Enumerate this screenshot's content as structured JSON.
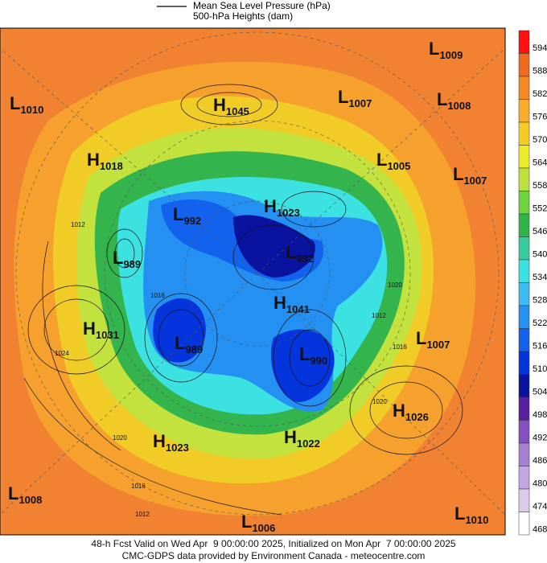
{
  "legend": {
    "items": [
      "Mean Sea Level Pressure (hPa)",
      "500-hPa Heights (dam)"
    ]
  },
  "colorbar": {
    "labels": [
      594,
      588,
      582,
      576,
      570,
      564,
      558,
      552,
      546,
      540,
      534,
      528,
      522,
      516,
      510,
      504,
      498,
      492,
      486,
      480,
      474,
      468
    ],
    "colors": [
      "#ff1010",
      "#f06a1e",
      "#f58a22",
      "#f8ac2c",
      "#f4cc24",
      "#ecec2a",
      "#bde23c",
      "#6fd23e",
      "#2fb44a",
      "#36cc9c",
      "#3ce2e2",
      "#3cbcf2",
      "#2490f2",
      "#1262ee",
      "#0434dc",
      "#0a12a0",
      "#5a1ea0",
      "#8450c2",
      "#a880d2",
      "#c4a6e2",
      "#dccbea",
      "#ffffff"
    ]
  },
  "centers": [
    {
      "type": "L",
      "value": 1010
    },
    {
      "type": "H",
      "value": 1045
    },
    {
      "type": "L",
      "value": 1007
    },
    {
      "type": "L",
      "value": 1009
    },
    {
      "type": "L",
      "value": 1008
    },
    {
      "type": "H",
      "value": 1018
    },
    {
      "type": "L",
      "value": 1005
    },
    {
      "type": "L",
      "value": 1007
    },
    {
      "type": "L",
      "value": 992
    },
    {
      "type": "H",
      "value": 1023
    },
    {
      "type": "L",
      "value": 989
    },
    {
      "type": "L",
      "value": 992
    },
    {
      "type": "H",
      "value": 1041
    },
    {
      "type": "H",
      "value": 1031
    },
    {
      "type": "L",
      "value": 989
    },
    {
      "type": "L",
      "value": 990
    },
    {
      "type": "L",
      "value": 1007
    },
    {
      "type": "H",
      "value": 1026
    },
    {
      "type": "H",
      "value": 1023
    },
    {
      "type": "H",
      "value": 1022
    },
    {
      "type": "L",
      "value": 1008
    },
    {
      "type": "L",
      "value": 1006
    },
    {
      "type": "L",
      "value": 1010
    }
  ],
  "contour_labels": [
    1012,
    1016,
    1024,
    1020,
    1016,
    1012,
    1012,
    1016,
    1020,
    1020
  ],
  "footer": {
    "lines": [
      "48-h Fcst Valid on Wed Apr  9 00:00:00 2025, Initialized on Mon Apr  7 00:00:00 2025",
      "CMC-GDPS data provided by Environment Canada - meteocentre.com"
    ]
  }
}
